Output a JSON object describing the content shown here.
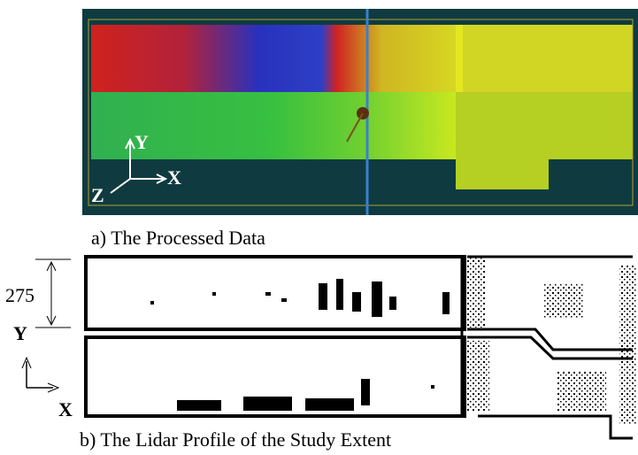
{
  "figure": {
    "panel_a": {
      "axis_labels": {
        "y": "Y",
        "x": "X",
        "z": "Z"
      },
      "caption": "a) The Processed Data"
    },
    "panel_b": {
      "dimension": "275",
      "axis_labels": {
        "y": "Y",
        "x": "X"
      },
      "caption": "b) The Lidar Profile of the Study Extent"
    }
  }
}
